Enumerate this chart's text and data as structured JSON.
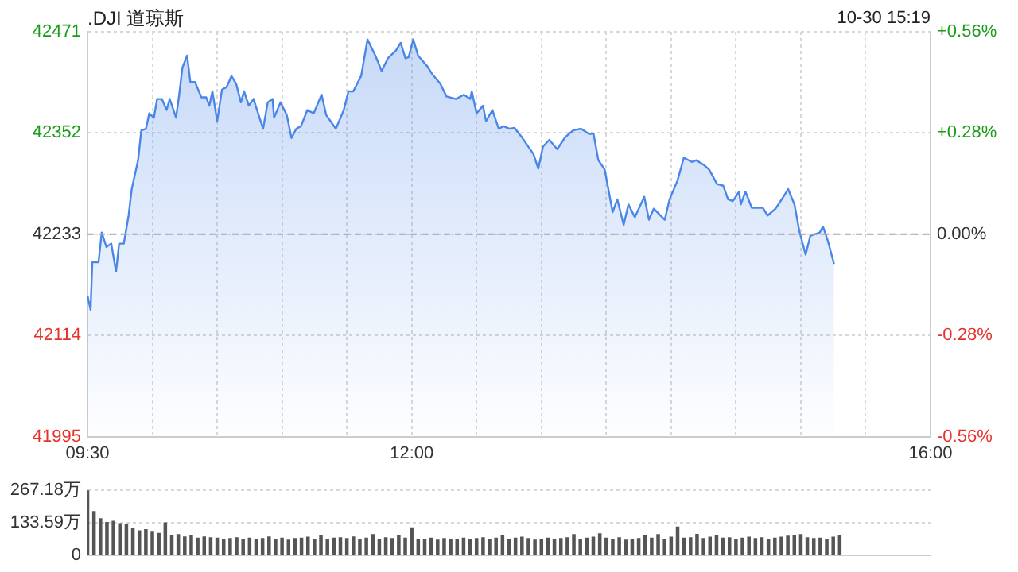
{
  "chart_data": [
    {
      "type": "area",
      "title": ".DJI 道琼斯",
      "annotations": [
        "10-30 15:19"
      ],
      "color": "#4a86e8",
      "x": [
        9.5,
        9.524,
        9.537,
        9.585,
        9.61,
        9.646,
        9.683,
        9.72,
        9.744,
        9.78,
        9.817,
        9.841,
        9.89,
        9.915,
        9.951,
        9.976,
        10.012,
        10.037,
        10.073,
        10.11,
        10.134,
        10.183,
        10.207,
        10.232,
        10.268,
        10.293,
        10.329,
        10.378,
        10.415,
        10.439,
        10.463,
        10.5,
        10.537,
        10.573,
        10.61,
        10.646,
        10.683,
        10.707,
        10.744,
        10.78,
        10.854,
        10.89,
        10.927,
        10.939,
        10.988,
        11.037,
        11.073,
        11.11,
        11.146,
        11.195,
        11.244,
        11.305,
        11.341,
        11.415,
        11.476,
        11.512,
        11.549,
        11.61,
        11.659,
        11.72,
        11.768,
        11.817,
        11.878,
        11.915,
        11.951,
        11.976,
        12.012,
        12.049,
        12.122,
        12.159,
        12.22,
        12.268,
        12.341,
        12.402,
        12.451,
        12.463,
        12.5,
        12.549,
        12.573,
        12.622,
        12.671,
        12.707,
        12.756,
        12.793,
        12.854,
        12.939,
        12.976,
        13.012,
        13.061,
        13.122,
        13.183,
        13.244,
        13.305,
        13.366,
        13.402,
        13.439,
        13.488,
        13.549,
        13.585,
        13.634,
        13.671,
        13.72,
        13.793,
        13.829,
        13.866,
        13.951,
        13.988,
        14.049,
        14.098,
        14.159,
        14.195,
        14.256,
        14.293,
        14.354,
        14.402,
        14.439,
        14.476,
        14.524,
        14.537,
        14.573,
        14.622,
        14.707,
        14.744,
        14.805,
        14.866,
        14.902,
        14.951,
        14.988,
        15.037,
        15.073,
        15.146,
        15.171,
        15.207,
        15.256
      ],
      "values": [
        42161,
        42144,
        42200,
        42200,
        42235,
        42218,
        42222,
        42189,
        42222,
        42222,
        42255,
        42286,
        42320,
        42355,
        42357,
        42375,
        42370,
        42392,
        42392,
        42379,
        42392,
        42370,
        42397,
        42429,
        42443,
        42412,
        42412,
        42394,
        42394,
        42384,
        42401,
        42366,
        42403,
        42406,
        42419,
        42410,
        42388,
        42401,
        42384,
        42392,
        42357,
        42388,
        42392,
        42370,
        42388,
        42373,
        42346,
        42357,
        42360,
        42379,
        42375,
        42397,
        42373,
        42357,
        42379,
        42401,
        42401,
        42419,
        42462,
        42443,
        42425,
        42440,
        42449,
        42458,
        42440,
        42441,
        42462,
        42443,
        42430,
        42421,
        42410,
        42395,
        42392,
        42397,
        42392,
        42401,
        42375,
        42384,
        42366,
        42379,
        42357,
        42360,
        42357,
        42358,
        42346,
        42327,
        42310,
        42336,
        42344,
        42333,
        42347,
        42355,
        42357,
        42351,
        42351,
        42320,
        42309,
        42259,
        42274,
        42244,
        42268,
        42253,
        42277,
        42250,
        42263,
        42250,
        42274,
        42296,
        42323,
        42318,
        42320,
        42314,
        42309,
        42292,
        42290,
        42274,
        42272,
        42283,
        42268,
        42283,
        42264,
        42264,
        42255,
        42263,
        42277,
        42286,
        42268,
        42237,
        42209,
        42231,
        42235,
        42242,
        42226,
        42198
      ],
      "xlim": [
        9.5,
        16
      ],
      "xticks": [
        {
          "value": 9.5,
          "label": "09:30"
        },
        {
          "value": 10,
          "label": null
        },
        {
          "value": 10.5,
          "label": null
        },
        {
          "value": 11,
          "label": null
        },
        {
          "value": 11.5,
          "label": null
        },
        {
          "value": 12,
          "label": "12:00"
        },
        {
          "value": 12.5,
          "label": null
        },
        {
          "value": 13,
          "label": null
        },
        {
          "value": 13.5,
          "label": null
        },
        {
          "value": 14,
          "label": null
        },
        {
          "value": 14.5,
          "label": null
        },
        {
          "value": 15,
          "label": null
        },
        {
          "value": 15.5,
          "label": null
        },
        {
          "value": 16,
          "label": "16:00"
        }
      ],
      "ylim": [
        41995,
        42471
      ],
      "yticks": [
        41995,
        42114,
        42233,
        42352,
        42471
      ],
      "y2lim": [
        -0.56,
        0.56
      ],
      "y2ticks": [
        {
          "value": -0.56,
          "label": "-0.56%"
        },
        {
          "value": -0.28,
          "label": "-0.28%"
        },
        {
          "value": 0,
          "label": "0.00%"
        },
        {
          "value": 0.28,
          "label": "+0.28%"
        },
        {
          "value": 0.56,
          "label": "+0.56%"
        }
      ],
      "ref_lines": [
        {
          "axis": "y",
          "value": 42233,
          "color": "#aaaaaa",
          "line_style": "dashed"
        }
      ],
      "grid": true,
      "legend": false,
      "marker": "none"
    },
    {
      "type": "bar",
      "color": "#555555",
      "tick_labels": "y",
      "grid": "y",
      "legend": false,
      "x": [
        9.5,
        9.55,
        9.6,
        9.65,
        9.7,
        9.75,
        9.8,
        9.85,
        9.9,
        9.95,
        10,
        10.05,
        10.1,
        10.15,
        10.2,
        10.25,
        10.3,
        10.35,
        10.4,
        10.45,
        10.5,
        10.55,
        10.6,
        10.65,
        10.7,
        10.75,
        10.8,
        10.85,
        10.9,
        10.95,
        11,
        11.05,
        11.1,
        11.15,
        11.2,
        11.25,
        11.3,
        11.35,
        11.4,
        11.45,
        11.5,
        11.55,
        11.6,
        11.65,
        11.7,
        11.75,
        11.8,
        11.85,
        11.9,
        11.95,
        12,
        12.05,
        12.1,
        12.15,
        12.2,
        12.25,
        12.3,
        12.35,
        12.4,
        12.45,
        12.5,
        12.55,
        12.6,
        12.65,
        12.7,
        12.75,
        12.8,
        12.85,
        12.9,
        12.95,
        13,
        13.05,
        13.1,
        13.15,
        13.2,
        13.25,
        13.3,
        13.35,
        13.4,
        13.45,
        13.5,
        13.55,
        13.6,
        13.65,
        13.7,
        13.75,
        13.8,
        13.85,
        13.9,
        13.95,
        14,
        14.05,
        14.1,
        14.15,
        14.2,
        14.25,
        14.3,
        14.35,
        14.4,
        14.45,
        14.5,
        14.55,
        14.6,
        14.65,
        14.7,
        14.75,
        14.8,
        14.85,
        14.9,
        14.95,
        15,
        15.05,
        15.1,
        15.15,
        15.2,
        15.25,
        15.3
      ],
      "values": [
        267,
        180,
        150,
        135,
        140,
        130,
        125,
        110,
        100,
        105,
        95,
        90,
        133,
        80,
        85,
        75,
        80,
        70,
        75,
        72,
        70,
        65,
        68,
        72,
        66,
        70,
        64,
        68,
        75,
        66,
        70,
        62,
        68,
        70,
        74,
        65,
        80,
        66,
        70,
        72,
        68,
        75,
        64,
        70,
        85,
        66,
        72,
        68,
        80,
        70,
        113,
        66,
        64,
        70,
        62,
        68,
        66,
        64,
        70,
        66,
        68,
        72,
        64,
        70,
        80,
        66,
        70,
        74,
        68,
        62,
        66,
        70,
        64,
        68,
        72,
        85,
        66,
        70,
        74,
        88,
        70,
        66,
        72,
        62,
        66,
        68,
        80,
        70,
        85,
        66,
        74,
        116,
        70,
        72,
        86,
        68,
        74,
        80,
        70,
        72,
        66,
        70,
        74,
        68,
        72,
        66,
        70,
        74,
        78,
        80,
        85,
        72,
        68,
        70,
        66,
        74,
        80
      ],
      "xlim": [
        9.5,
        16
      ],
      "ylim": [
        0,
        267.18
      ],
      "yticks": [
        0,
        {
          "value": 133.59,
          "label": "133.59万"
        },
        {
          "value": 267.18,
          "label": "267.18万"
        }
      ]
    }
  ]
}
